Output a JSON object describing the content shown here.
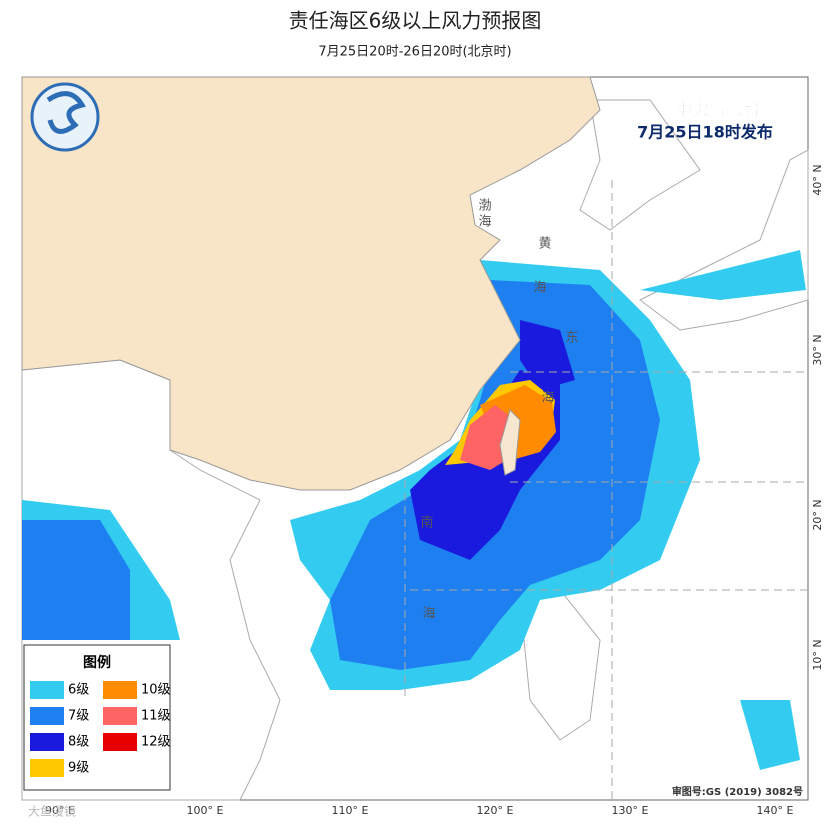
{
  "header": {
    "title": "责任海区6级以上风力预报图",
    "subtitle": "7月25日20时-26日20时(北京时)"
  },
  "issuer": {
    "name": "中央气象台",
    "time": "7月25日18时发布"
  },
  "sea_labels": [
    "渤",
    "海",
    "黄",
    "海",
    "东",
    "海",
    "南",
    "海"
  ],
  "lat_labels": [
    "40° N",
    "30° N",
    "20° N",
    "10° N"
  ],
  "lon_labels": [
    "90° E",
    "100° E",
    "110° E",
    "120° E",
    "130° E",
    "140° E"
  ],
  "legend": {
    "title": "图例",
    "items": [
      {
        "label": "6级",
        "color": "#33ccf0"
      },
      {
        "label": "7级",
        "color": "#1e7ff0"
      },
      {
        "label": "8级",
        "color": "#1a1adf"
      },
      {
        "label": "9级",
        "color": "#ffc800"
      },
      {
        "label": "10级",
        "color": "#ff8c00"
      },
      {
        "label": "11级",
        "color": "#ff6464"
      },
      {
        "label": "12级",
        "color": "#e60000"
      }
    ]
  },
  "approval": "审图号:GS (2019) 3082号",
  "watermark": "大鱼漫镜"
}
